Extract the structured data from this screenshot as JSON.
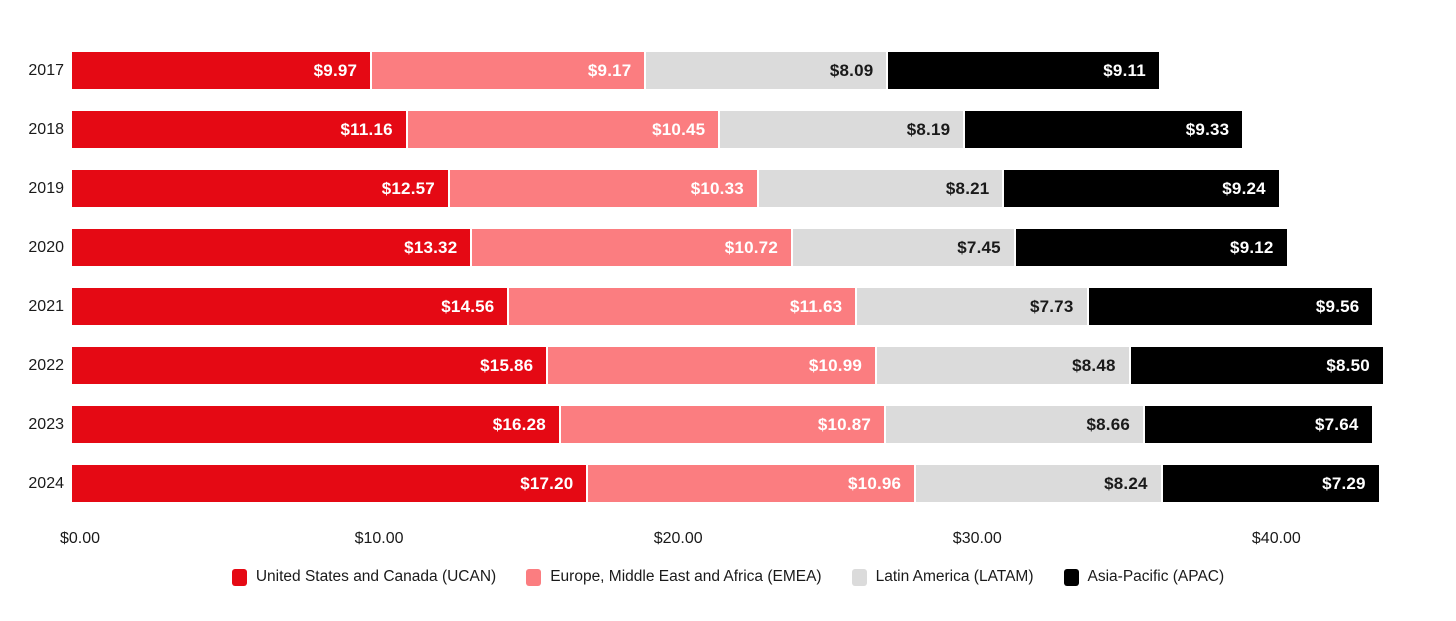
{
  "chart_data": {
    "type": "bar",
    "stacked": true,
    "orientation": "horizontal",
    "title": "",
    "xlabel": "",
    "ylabel": "",
    "grid": false,
    "legend_position": "bottom",
    "value_prefix": "$",
    "categories": [
      "2017",
      "2018",
      "2019",
      "2020",
      "2021",
      "2022",
      "2023",
      "2024"
    ],
    "series": [
      {
        "name": "United States and Canada (UCAN)",
        "color": "#E50914",
        "label_color": "#FFFFFF",
        "values": [
          9.97,
          11.16,
          12.57,
          13.32,
          14.56,
          15.86,
          16.28,
          17.2
        ]
      },
      {
        "name": "Europe, Middle East and Africa (EMEA)",
        "color": "#FB7D80",
        "label_color": "#FFFFFF",
        "values": [
          9.17,
          10.45,
          10.33,
          10.72,
          11.63,
          10.99,
          10.87,
          10.96
        ]
      },
      {
        "name": "Latin America (LATAM)",
        "color": "#DBDBDB",
        "label_color": "#1A1A1A",
        "values": [
          8.09,
          8.19,
          8.21,
          7.45,
          7.73,
          8.48,
          8.66,
          8.24
        ]
      },
      {
        "name": "Asia-Pacific (APAC)",
        "color": "#000000",
        "label_color": "#FFFFFF",
        "values": [
          9.11,
          9.33,
          9.24,
          9.12,
          9.56,
          8.5,
          7.64,
          7.29
        ]
      }
    ],
    "x_ticks": [
      {
        "label": "$0.00",
        "value": 0
      },
      {
        "label": "$10.00",
        "value": 10
      },
      {
        "label": "$20.00",
        "value": 20
      },
      {
        "label": "$30.00",
        "value": 30
      },
      {
        "label": "$40.00",
        "value": 40
      }
    ],
    "xlim": [
      0,
      44
    ]
  }
}
